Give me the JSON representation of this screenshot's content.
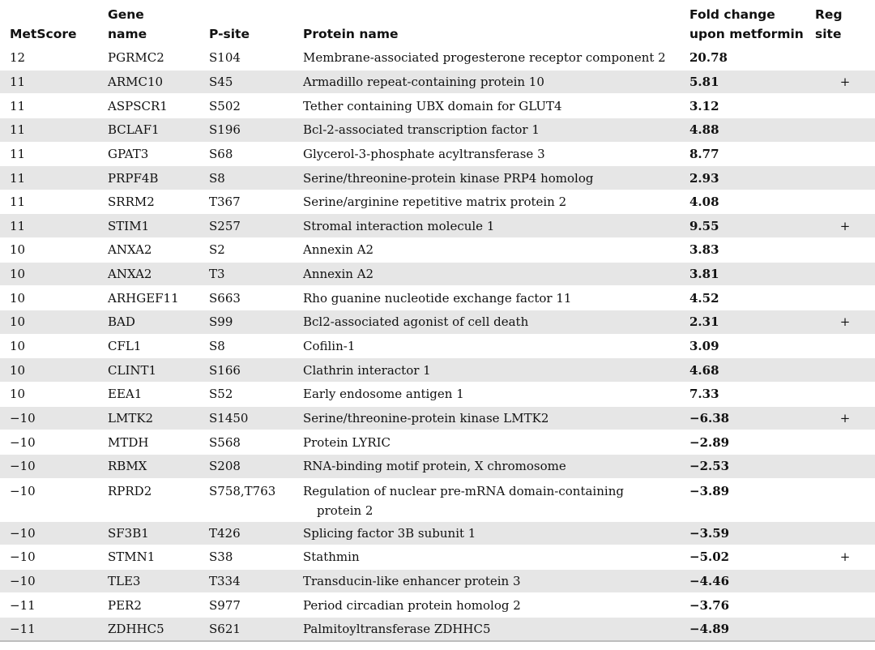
{
  "table": {
    "headers": {
      "metscore": "MetScore",
      "gene_name_1": "Gene",
      "gene_name_2": "name",
      "psite": "P-site",
      "protein_name": "Protein name",
      "fold_change_1": "Fold change",
      "fold_change_2": "upon metformin",
      "reg_site_1": "Reg",
      "reg_site_2": "site"
    },
    "rows": [
      {
        "metscore": "12",
        "gene": "PGRMC2",
        "psite": "S104",
        "protein": "Membrane-associated progesterone receptor component 2",
        "fold": "20.78",
        "reg": ""
      },
      {
        "metscore": "11",
        "gene": "ARMC10",
        "psite": "S45",
        "protein": "Armadillo repeat-containing protein 10",
        "fold": "5.81",
        "reg": "+"
      },
      {
        "metscore": "11",
        "gene": "ASPSCR1",
        "psite": "S502",
        "protein": "Tether containing UBX domain for GLUT4",
        "fold": "3.12",
        "reg": ""
      },
      {
        "metscore": "11",
        "gene": "BCLAF1",
        "psite": "S196",
        "protein": "Bcl-2-associated transcription factor 1",
        "fold": "4.88",
        "reg": ""
      },
      {
        "metscore": "11",
        "gene": "GPAT3",
        "psite": "S68",
        "protein": "Glycerol-3-phosphate acyltransferase 3",
        "fold": "8.77",
        "reg": ""
      },
      {
        "metscore": "11",
        "gene": "PRPF4B",
        "psite": "S8",
        "protein": "Serine/threonine-protein kinase PRP4 homolog",
        "fold": "2.93",
        "reg": ""
      },
      {
        "metscore": "11",
        "gene": "SRRM2",
        "psite": "T367",
        "protein": "Serine/arginine repetitive matrix protein 2",
        "fold": "4.08",
        "reg": ""
      },
      {
        "metscore": "11",
        "gene": "STIM1",
        "psite": "S257",
        "protein": "Stromal interaction molecule 1",
        "fold": "9.55",
        "reg": "+"
      },
      {
        "metscore": "10",
        "gene": "ANXA2",
        "psite": "S2",
        "protein": "Annexin A2",
        "fold": "3.83",
        "reg": ""
      },
      {
        "metscore": "10",
        "gene": "ANXA2",
        "psite": "T3",
        "protein": "Annexin A2",
        "fold": "3.81",
        "reg": ""
      },
      {
        "metscore": "10",
        "gene": "ARHGEF11",
        "psite": "S663",
        "protein": "Rho guanine nucleotide exchange factor 11",
        "fold": "4.52",
        "reg": ""
      },
      {
        "metscore": "10",
        "gene": "BAD",
        "psite": "S99",
        "protein": "Bcl2-associated agonist of cell death",
        "fold": "2.31",
        "reg": "+"
      },
      {
        "metscore": "10",
        "gene": "CFL1",
        "psite": "S8",
        "protein": "Cofilin-1",
        "fold": "3.09",
        "reg": ""
      },
      {
        "metscore": "10",
        "gene": "CLINT1",
        "psite": "S166",
        "protein": "Clathrin interactor 1",
        "fold": "4.68",
        "reg": ""
      },
      {
        "metscore": "10",
        "gene": "EEA1",
        "psite": "S52",
        "protein": "Early endosome antigen 1",
        "fold": "7.33",
        "reg": ""
      },
      {
        "metscore": "−10",
        "gene": "LMTK2",
        "psite": "S1450",
        "protein": "Serine/threonine-protein kinase LMTK2",
        "fold": "−6.38",
        "reg": "+"
      },
      {
        "metscore": "−10",
        "gene": "MTDH",
        "psite": "S568",
        "protein": "Protein LYRIC",
        "fold": "−2.89",
        "reg": ""
      },
      {
        "metscore": "−10",
        "gene": "RBMX",
        "psite": "S208",
        "protein": "RNA-binding motif protein, X chromosome",
        "fold": "−2.53",
        "reg": ""
      },
      {
        "metscore": "−10",
        "gene": "RPRD2",
        "psite": "S758,T763",
        "protein": "Regulation of nuclear pre-mRNA domain-containing",
        "protein_line2": "protein 2",
        "fold": "−3.89",
        "reg": ""
      },
      {
        "metscore": "−10",
        "gene": "SF3B1",
        "psite": "T426",
        "protein": "Splicing factor 3B subunit 1",
        "fold": "−3.59",
        "reg": ""
      },
      {
        "metscore": "−10",
        "gene": "STMN1",
        "psite": "S38",
        "protein": "Stathmin",
        "fold": "−5.02",
        "reg": "+"
      },
      {
        "metscore": "−10",
        "gene": "TLE3",
        "psite": "T334",
        "protein": "Transducin-like enhancer protein 3",
        "fold": "−4.46",
        "reg": ""
      },
      {
        "metscore": "−11",
        "gene": "PER2",
        "psite": "S977",
        "protein": "Period circadian protein homolog 2",
        "fold": "−3.76",
        "reg": ""
      },
      {
        "metscore": "−11",
        "gene": "ZDHHC5",
        "psite": "S621",
        "protein": "Palmitoyltransferase ZDHHC5",
        "fold": "−4.89",
        "reg": ""
      }
    ]
  }
}
